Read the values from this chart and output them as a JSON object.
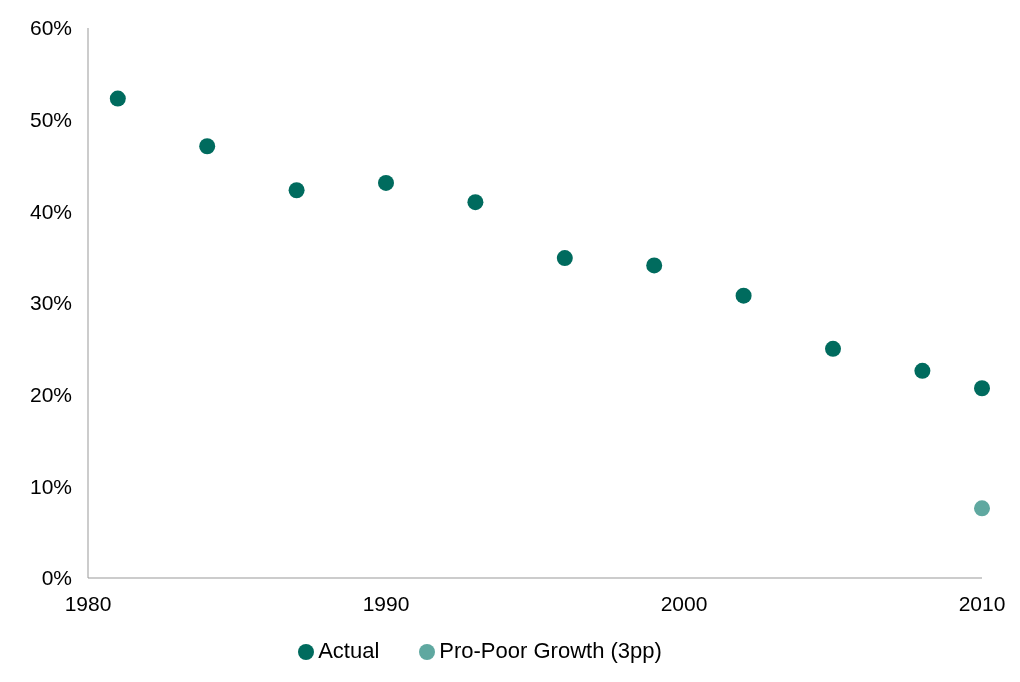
{
  "chart_data": {
    "type": "scatter",
    "xlim": [
      1980,
      2010
    ],
    "xticks": [
      1980,
      1990,
      2000,
      2010
    ],
    "ylim": [
      0,
      60
    ],
    "yticks": [
      {
        "value": 0,
        "label": "0%"
      },
      {
        "value": 10,
        "label": "10%"
      },
      {
        "value": 20,
        "label": "20%"
      },
      {
        "value": 30,
        "label": "30%"
      },
      {
        "value": 40,
        "label": "40%"
      },
      {
        "value": 50,
        "label": "50%"
      },
      {
        "value": 60,
        "label": "60%"
      }
    ],
    "grid": false,
    "legend": "bottom",
    "marker": "circle",
    "series": [
      {
        "name": "Actual",
        "color": "#006b5e",
        "x": [
          1981,
          1984,
          1987,
          1990,
          1993,
          1996,
          1999,
          2002,
          2005,
          2008,
          2010
        ],
        "values": [
          52.3,
          47.1,
          42.3,
          43.1,
          41.0,
          34.9,
          34.1,
          30.8,
          25.0,
          22.6,
          20.7
        ]
      },
      {
        "name": "Pro-Poor Growth (3pp)",
        "color": "#5fa8a0",
        "x": [
          2010
        ],
        "values": [
          7.6
        ]
      }
    ]
  }
}
